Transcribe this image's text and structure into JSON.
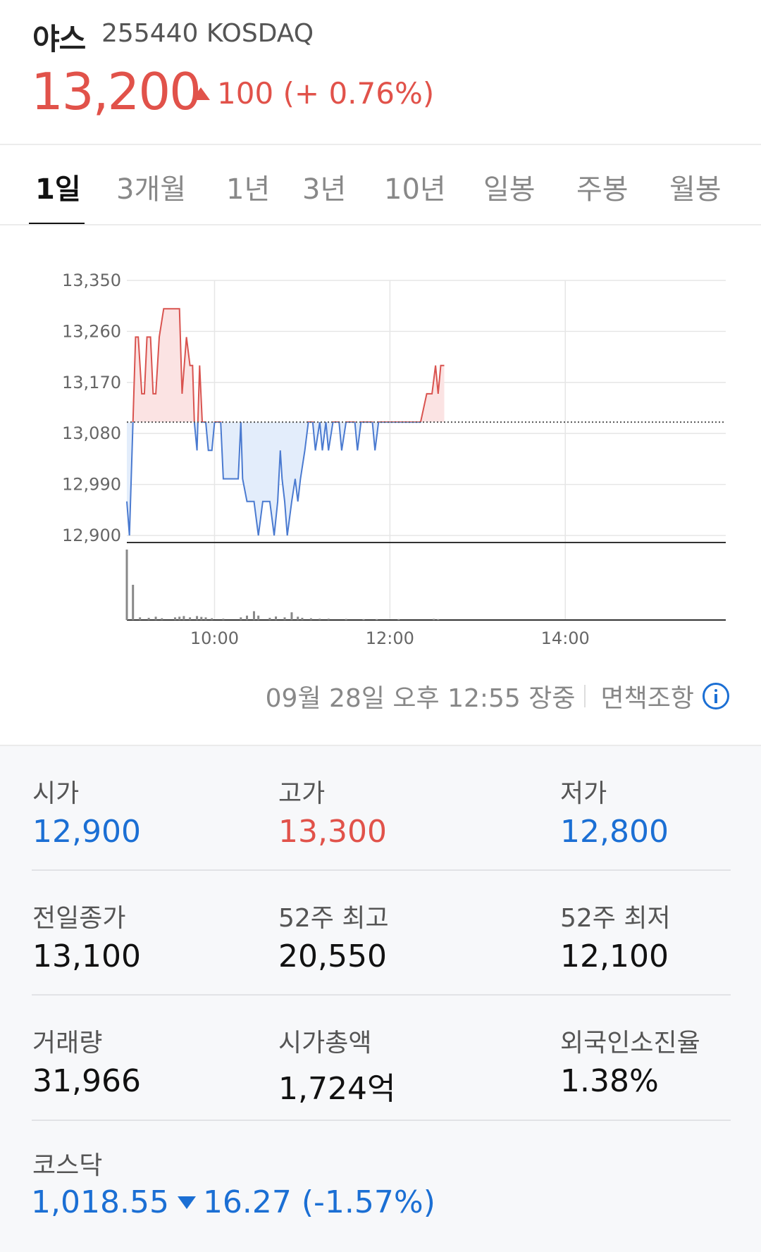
{
  "header": {
    "name": "야스",
    "code": "255440 KOSDAQ",
    "price": "13,200",
    "change": "100 (+ 0.76%)",
    "direction": "up"
  },
  "tabs": [
    {
      "label": "1일",
      "active": true
    },
    {
      "label": "3개월",
      "active": false
    },
    {
      "label": "1년",
      "active": false
    },
    {
      "label": "3년",
      "active": false
    },
    {
      "label": "10년",
      "active": false
    },
    {
      "label": "일봉",
      "active": false
    },
    {
      "label": "주봉",
      "active": false
    },
    {
      "label": "월봉",
      "active": false
    }
  ],
  "chart_data": {
    "type": "line",
    "y_ticks": [
      "13,350",
      "13,260",
      "13,170",
      "13,080",
      "12,990",
      "12,900"
    ],
    "x_ticks": [
      "10:00",
      "12:00",
      "14:00"
    ],
    "ylim": [
      12900,
      13350
    ],
    "baseline": 13100,
    "colors": {
      "up": "#d9534f",
      "down": "#4a7ad0",
      "up_fill": "#fbe3e3",
      "down_fill": "#e3edfb",
      "volume": "#888888"
    },
    "price": [
      [
        9.0,
        12960
      ],
      [
        9.03,
        12900
      ],
      [
        9.07,
        13100
      ],
      [
        9.1,
        13250
      ],
      [
        9.13,
        13250
      ],
      [
        9.17,
        13150
      ],
      [
        9.2,
        13150
      ],
      [
        9.23,
        13250
      ],
      [
        9.27,
        13250
      ],
      [
        9.3,
        13150
      ],
      [
        9.33,
        13150
      ],
      [
        9.37,
        13250
      ],
      [
        9.42,
        13300
      ],
      [
        9.47,
        13300
      ],
      [
        9.5,
        13300
      ],
      [
        9.55,
        13300
      ],
      [
        9.6,
        13300
      ],
      [
        9.63,
        13150
      ],
      [
        9.68,
        13250
      ],
      [
        9.72,
        13200
      ],
      [
        9.75,
        13200
      ],
      [
        9.77,
        13100
      ],
      [
        9.8,
        13050
      ],
      [
        9.83,
        13200
      ],
      [
        9.86,
        13100
      ],
      [
        9.9,
        13100
      ],
      [
        9.93,
        13050
      ],
      [
        9.97,
        13050
      ],
      [
        10.0,
        13100
      ],
      [
        10.07,
        13100
      ],
      [
        10.1,
        13000
      ],
      [
        10.2,
        13000
      ],
      [
        10.27,
        13000
      ],
      [
        10.3,
        13100
      ],
      [
        10.32,
        13000
      ],
      [
        10.37,
        12960
      ],
      [
        10.45,
        12960
      ],
      [
        10.5,
        12900
      ],
      [
        10.55,
        12960
      ],
      [
        10.63,
        12960
      ],
      [
        10.68,
        12900
      ],
      [
        10.72,
        12960
      ],
      [
        10.75,
        13050
      ],
      [
        10.77,
        13000
      ],
      [
        10.8,
        12960
      ],
      [
        10.83,
        12900
      ],
      [
        10.88,
        12960
      ],
      [
        10.92,
        13000
      ],
      [
        10.95,
        12960
      ],
      [
        10.98,
        13000
      ],
      [
        11.03,
        13050
      ],
      [
        11.07,
        13100
      ],
      [
        11.12,
        13100
      ],
      [
        11.15,
        13050
      ],
      [
        11.2,
        13100
      ],
      [
        11.23,
        13050
      ],
      [
        11.27,
        13100
      ],
      [
        11.3,
        13050
      ],
      [
        11.35,
        13100
      ],
      [
        11.42,
        13100
      ],
      [
        11.45,
        13050
      ],
      [
        11.5,
        13100
      ],
      [
        11.6,
        13100
      ],
      [
        11.63,
        13050
      ],
      [
        11.67,
        13100
      ],
      [
        11.8,
        13100
      ],
      [
        11.83,
        13050
      ],
      [
        11.87,
        13100
      ],
      [
        12.0,
        13100
      ],
      [
        12.2,
        13100
      ],
      [
        12.35,
        13100
      ],
      [
        12.42,
        13150
      ],
      [
        12.48,
        13150
      ],
      [
        12.52,
        13200
      ],
      [
        12.55,
        13150
      ],
      [
        12.58,
        13200
      ],
      [
        12.62,
        13200
      ]
    ],
    "volume": [
      [
        9.0,
        3200
      ],
      [
        9.07,
        1600
      ],
      [
        9.15,
        120
      ],
      [
        9.25,
        100
      ],
      [
        9.33,
        150
      ],
      [
        9.4,
        80
      ],
      [
        9.55,
        120
      ],
      [
        9.6,
        150
      ],
      [
        9.65,
        180
      ],
      [
        9.72,
        120
      ],
      [
        9.8,
        180
      ],
      [
        9.85,
        140
      ],
      [
        9.9,
        120
      ],
      [
        9.97,
        80
      ],
      [
        10.1,
        60
      ],
      [
        10.3,
        120
      ],
      [
        10.37,
        200
      ],
      [
        10.45,
        400
      ],
      [
        10.5,
        200
      ],
      [
        10.63,
        100
      ],
      [
        10.7,
        160
      ],
      [
        10.8,
        120
      ],
      [
        10.88,
        350
      ],
      [
        10.95,
        150
      ],
      [
        11.0,
        100
      ],
      [
        11.1,
        80
      ],
      [
        11.2,
        60
      ],
      [
        11.3,
        60
      ],
      [
        11.5,
        50
      ],
      [
        11.7,
        40
      ],
      [
        11.85,
        40
      ],
      [
        12.1,
        40
      ],
      [
        12.5,
        50
      ],
      [
        12.55,
        40
      ]
    ]
  },
  "timeline": {
    "timestamp": "09월 28일 오후 12:55 장중",
    "disclaimer": "면책조항"
  },
  "stats": [
    [
      {
        "label": "시가",
        "value": "12,900",
        "color": "blue"
      },
      {
        "label": "고가",
        "value": "13,300",
        "color": "red"
      },
      {
        "label": "저가",
        "value": "12,800",
        "color": "blue"
      }
    ],
    [
      {
        "label": "전일종가",
        "value": "13,100",
        "color": "black"
      },
      {
        "label": "52주 최고",
        "value": "20,550",
        "color": "black"
      },
      {
        "label": "52주 최저",
        "value": "12,100",
        "color": "black"
      }
    ],
    [
      {
        "label": "거래량",
        "value": "31,966",
        "color": "black"
      },
      {
        "label": "시가총액",
        "value": "1,724억",
        "color": "black"
      },
      {
        "label": "외국인소진율",
        "value": "1.38%",
        "color": "black"
      }
    ]
  ],
  "index": {
    "label": "코스닥",
    "value": "1,018.55",
    "change": "16.27 (-1.57%)",
    "direction": "down"
  }
}
